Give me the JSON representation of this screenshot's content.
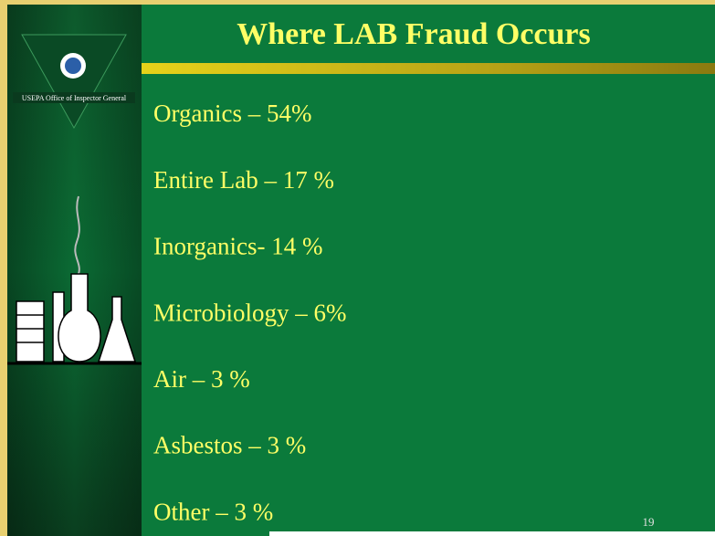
{
  "slide": {
    "title": "Where LAB Fraud Occurs",
    "logo_caption": "USEPA Office of Inspector General",
    "items": [
      "Organics – 54%",
      "Entire Lab – 17 %",
      "Inorganics- 14 %",
      "Microbiology – 6%",
      "Air – 3 %",
      "Asbestos – 3 %",
      "Other – 3 %"
    ],
    "page_number": "19"
  }
}
